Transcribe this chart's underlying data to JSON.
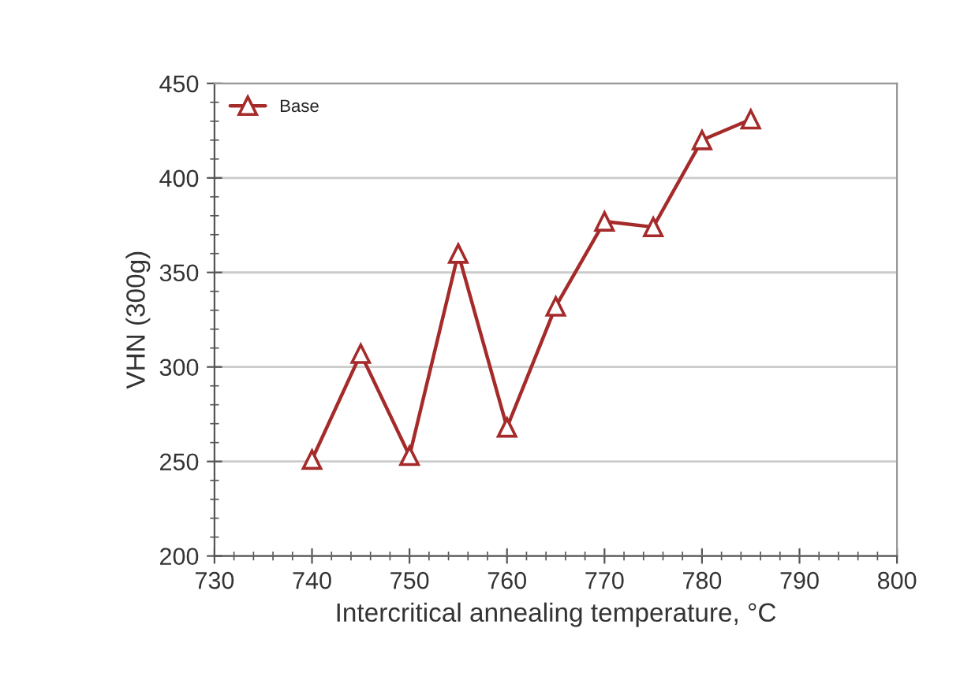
{
  "chart_data": {
    "type": "line",
    "xlabel": "Intercritical annealing temperature, °C",
    "ylabel": "VHN (300g)",
    "x": [
      740,
      745,
      750,
      755,
      760,
      765,
      770,
      775,
      780,
      785
    ],
    "series": [
      {
        "name": "Base",
        "color": "#a52a2a",
        "values": [
          251,
          307,
          253,
          360,
          268,
          332,
          377,
          374,
          420,
          431
        ]
      }
    ],
    "xlim": [
      730,
      800
    ],
    "xticks": [
      730,
      740,
      750,
      760,
      770,
      780,
      790,
      800
    ],
    "ylim": [
      200,
      450
    ],
    "yticks": [
      200,
      250,
      300,
      350,
      400,
      450
    ],
    "grid": "y",
    "legend": "top left",
    "marker": "triangle",
    "line_style": "solid"
  }
}
